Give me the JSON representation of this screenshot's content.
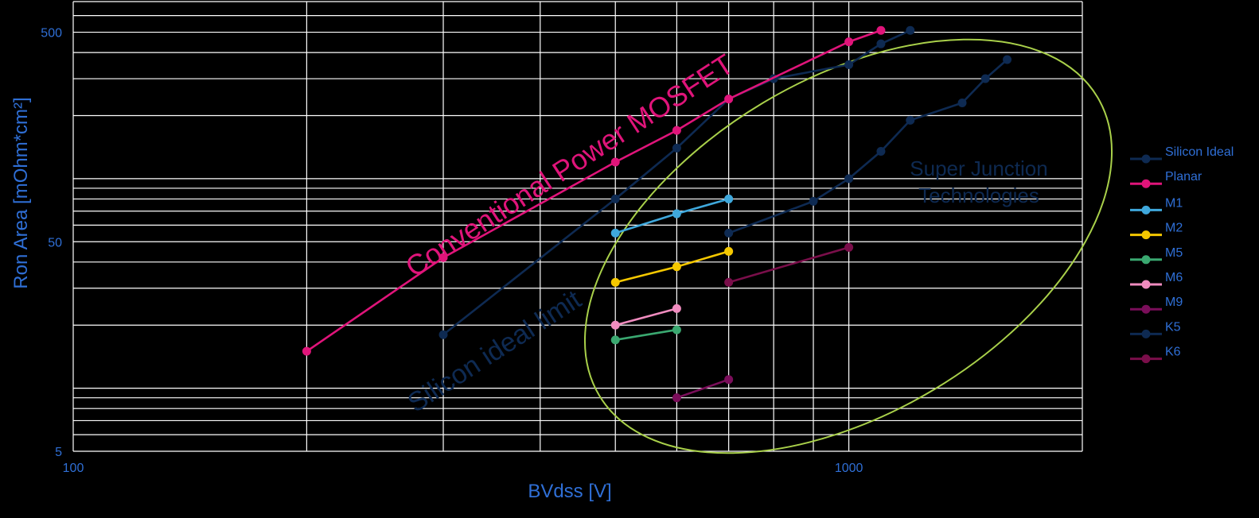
{
  "chart_data": {
    "type": "line",
    "xlabel": "BVdss [V]",
    "ylabel": "Ron Area [mOhm*cm²]",
    "x_scale": "log",
    "y_scale": "log",
    "xlim": [
      100,
      2000
    ],
    "ylim": [
      5,
      700
    ],
    "x_tick_labels": [
      "100",
      "1000"
    ],
    "y_tick_labels": [
      "5",
      "50",
      "500"
    ],
    "grid": true,
    "legend_position": "right",
    "series": [
      {
        "name": "Silicon Ideal",
        "color": "#0e2a52",
        "x": [
          300,
          500,
          600,
          700,
          800,
          1000,
          1100,
          1200
        ],
        "y": [
          18,
          80,
          140,
          240,
          300,
          350,
          440,
          510
        ]
      },
      {
        "name": "Planar",
        "color": "#e0147a",
        "x": [
          200,
          300,
          500,
          600,
          700,
          1000,
          1100
        ],
        "y": [
          15,
          42,
          120,
          170,
          240,
          450,
          510
        ]
      },
      {
        "name": "M1",
        "color": "#3fa8dc",
        "x": [
          500,
          600,
          700
        ],
        "y": [
          55,
          68,
          80
        ]
      },
      {
        "name": "M2",
        "color": "#f5c800",
        "x": [
          500,
          600,
          700
        ],
        "y": [
          32,
          38,
          45
        ]
      },
      {
        "name": "M5",
        "color": "#3aa870",
        "x": [
          500,
          600
        ],
        "y": [
          17,
          19
        ]
      },
      {
        "name": "M6",
        "color": "#f08cbf",
        "x": [
          500,
          600
        ],
        "y": [
          20,
          24
        ]
      },
      {
        "name": "M9",
        "color": "#7a0e5a",
        "x": [
          600,
          700
        ],
        "y": [
          9,
          11
        ]
      },
      {
        "name": "K5",
        "color": "#0e2a52",
        "x": [
          700,
          900,
          1000,
          1100,
          1200,
          1400,
          1500,
          1600
        ],
        "y": [
          55,
          78,
          100,
          135,
          190,
          230,
          300,
          370
        ]
      },
      {
        "name": "K6",
        "color": "#7a0e4a",
        "x": [
          700,
          1000
        ],
        "y": [
          32,
          47
        ]
      }
    ],
    "annotations": [
      {
        "text": "Conventional Power MOSFET",
        "color": "#e0147a"
      },
      {
        "text": "Silicon ideal limit",
        "color": "#0e2a52"
      },
      {
        "text": "Super Junction",
        "color": "#0e2a52"
      },
      {
        "text": "Technologies",
        "color": "#0e2a52"
      }
    ]
  }
}
